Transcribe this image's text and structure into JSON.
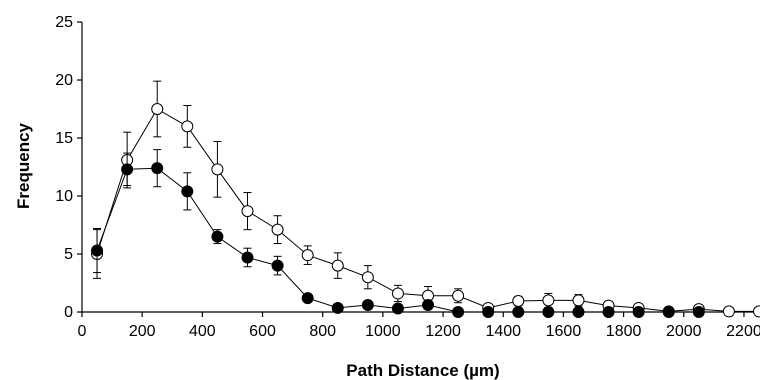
{
  "chart_data": {
    "type": "line",
    "title": "",
    "xlabel": "Path Distance (µm)",
    "ylabel": "Frequency",
    "xlim": [
      0,
      2250
    ],
    "ylim": [
      0,
      25
    ],
    "xticks": [
      0,
      200,
      400,
      600,
      800,
      1000,
      1200,
      1400,
      1600,
      1800,
      2000,
      2200
    ],
    "yticks": [
      0,
      5,
      10,
      15,
      20,
      25
    ],
    "grid": false,
    "legend": "none",
    "series": [
      {
        "marker": "open-circle",
        "color": "#000000",
        "x": [
          50,
          150,
          250,
          350,
          450,
          550,
          650,
          750,
          850,
          950,
          1050,
          1150,
          1250,
          1350,
          1450,
          1550,
          1650,
          1750,
          1850,
          1950,
          2050,
          2150,
          2250
        ],
        "values": [
          5.0,
          13.1,
          17.5,
          16.0,
          12.3,
          8.7,
          7.1,
          4.9,
          4.0,
          3.0,
          1.6,
          1.4,
          1.4,
          0.35,
          0.95,
          1.0,
          1.0,
          0.55,
          0.35,
          0.05,
          0.25,
          0.05,
          0.05
        ],
        "error": [
          2.1,
          2.4,
          2.4,
          1.8,
          2.4,
          1.6,
          1.2,
          0.8,
          1.1,
          1.0,
          0.7,
          0.8,
          0.6,
          0.2,
          0.4,
          0.6,
          0.5,
          0.2,
          0.2,
          0.1,
          0.2,
          0.1,
          0.05
        ]
      },
      {
        "marker": "filled-circle",
        "color": "#000000",
        "x": [
          50,
          150,
          250,
          350,
          450,
          550,
          650,
          750,
          850,
          950,
          1050,
          1150,
          1250,
          1350,
          1450,
          1550,
          1650,
          1750,
          1850,
          1950,
          2050
        ],
        "values": [
          5.3,
          12.3,
          12.4,
          10.4,
          6.5,
          4.7,
          4.0,
          1.2,
          0.35,
          0.6,
          0.3,
          0.6,
          0.0,
          0.0,
          0.0,
          0.0,
          0.0,
          0.0,
          0.0,
          0.0,
          0.0
        ],
        "error": [
          1.9,
          1.4,
          1.6,
          1.6,
          0.6,
          0.8,
          0.8,
          0.3,
          0.1,
          0.2,
          0.2,
          0.3,
          0.0,
          0.0,
          0.0,
          0.0,
          0.0,
          0.0,
          0.0,
          0.0,
          0.0
        ]
      }
    ]
  }
}
